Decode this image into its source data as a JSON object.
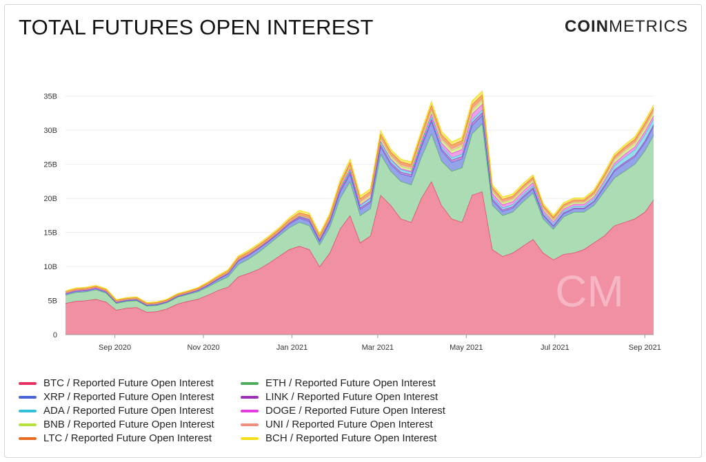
{
  "header": {
    "title": "TOTAL FUTURES OPEN INTEREST",
    "logo_bold": "COIN",
    "logo_thin": "METRICS"
  },
  "chart_data": {
    "type": "area",
    "stacked": true,
    "title": "TOTAL FUTURES OPEN INTEREST",
    "xlabel": "",
    "ylabel": "",
    "ylim": [
      0,
      38000000000
    ],
    "y_ticks": [
      "0",
      "5B",
      "10B",
      "15B",
      "20B",
      "25B",
      "30B",
      "35B"
    ],
    "x_ticks": [
      "Sep 2020",
      "Nov 2020",
      "Jan 2021",
      "Mar 2021",
      "May 2021",
      "Jul 2021",
      "Sep 2021"
    ],
    "grid": true,
    "legend_placement": "bottom",
    "x": [
      "2020-07-29",
      "2020-08-05",
      "2020-08-12",
      "2020-08-19",
      "2020-08-26",
      "2020-09-02",
      "2020-09-09",
      "2020-09-16",
      "2020-09-23",
      "2020-09-30",
      "2020-10-07",
      "2020-10-14",
      "2020-10-21",
      "2020-10-28",
      "2020-11-04",
      "2020-11-11",
      "2020-11-18",
      "2020-11-25",
      "2020-12-02",
      "2020-12-09",
      "2020-12-16",
      "2020-12-23",
      "2020-12-30",
      "2021-01-06",
      "2021-01-13",
      "2021-01-20",
      "2021-01-27",
      "2021-02-03",
      "2021-02-10",
      "2021-02-17",
      "2021-02-24",
      "2021-03-03",
      "2021-03-10",
      "2021-03-17",
      "2021-03-24",
      "2021-03-31",
      "2021-04-07",
      "2021-04-14",
      "2021-04-21",
      "2021-04-28",
      "2021-05-05",
      "2021-05-12",
      "2021-05-19",
      "2021-05-26",
      "2021-06-02",
      "2021-06-09",
      "2021-06-16",
      "2021-06-23",
      "2021-06-30",
      "2021-07-07",
      "2021-07-14",
      "2021-07-21",
      "2021-07-28",
      "2021-08-04",
      "2021-08-11",
      "2021-08-18",
      "2021-08-25",
      "2021-09-01",
      "2021-09-07"
    ],
    "series": [
      {
        "name": "BTC / Reported Future Open Interest",
        "color": "#e8305f",
        "fill": "#f08a9e",
        "values": [
          4.6,
          4.9,
          5.0,
          5.2,
          4.8,
          3.6,
          3.9,
          4.0,
          3.3,
          3.4,
          3.8,
          4.5,
          4.9,
          5.2,
          5.8,
          6.5,
          7.0,
          8.5,
          9.0,
          9.6,
          10.5,
          11.5,
          12.5,
          13.0,
          12.5,
          10.0,
          12.0,
          15.5,
          17.5,
          13.5,
          14.5,
          20.5,
          19.0,
          17.0,
          16.5,
          20.0,
          22.5,
          19.0,
          17.0,
          16.5,
          20.5,
          21.0,
          12.5,
          11.5,
          12.0,
          13.0,
          14.0,
          12.0,
          11.0,
          11.8,
          12.0,
          12.5,
          13.5,
          14.5,
          16.0,
          16.5,
          17.0,
          18.0,
          19.8
        ]
      },
      {
        "name": "ETH / Reported Future Open Interest",
        "color": "#4cae5c",
        "fill": "#a8dab0",
        "values": [
          1.2,
          1.3,
          1.3,
          1.4,
          1.3,
          1.0,
          1.0,
          1.0,
          0.9,
          0.9,
          0.9,
          1.0,
          1.0,
          1.1,
          1.2,
          1.3,
          1.5,
          1.8,
          2.1,
          2.5,
          2.8,
          3.0,
          3.2,
          3.5,
          3.5,
          3.2,
          3.8,
          4.5,
          5.0,
          4.0,
          4.0,
          6.0,
          5.0,
          5.5,
          5.5,
          6.0,
          7.0,
          6.5,
          7.0,
          8.0,
          9.0,
          10.0,
          6.5,
          6.0,
          6.0,
          6.5,
          6.8,
          5.0,
          4.5,
          5.5,
          6.0,
          5.5,
          5.5,
          6.5,
          7.0,
          7.5,
          8.0,
          9.0,
          9.5
        ]
      },
      {
        "name": "XRP / Reported Future Open Interest",
        "color": "#4a62d8",
        "fill": "#8f9ee8",
        "values": [
          0.15,
          0.15,
          0.15,
          0.15,
          0.15,
          0.1,
          0.1,
          0.1,
          0.1,
          0.1,
          0.1,
          0.1,
          0.1,
          0.15,
          0.2,
          0.3,
          0.4,
          0.5,
          0.5,
          0.5,
          0.4,
          0.4,
          0.5,
          0.6,
          0.6,
          0.5,
          0.7,
          0.9,
          1.1,
          0.9,
          0.9,
          1.1,
          1.0,
          1.1,
          1.2,
          1.5,
          1.8,
          1.5,
          1.3,
          1.3,
          1.2,
          1.2,
          0.7,
          0.6,
          0.6,
          0.6,
          0.6,
          0.5,
          0.4,
          0.45,
          0.45,
          0.45,
          0.5,
          0.7,
          1.0,
          1.1,
          1.1,
          1.2,
          1.3
        ]
      },
      {
        "name": "LINK / Reported Future Open Interest",
        "color": "#9a2fb3",
        "fill": "#c78ad6",
        "values": [
          0.1,
          0.1,
          0.1,
          0.1,
          0.1,
          0.08,
          0.08,
          0.08,
          0.07,
          0.07,
          0.07,
          0.07,
          0.07,
          0.08,
          0.09,
          0.1,
          0.1,
          0.12,
          0.12,
          0.12,
          0.12,
          0.13,
          0.15,
          0.18,
          0.2,
          0.18,
          0.2,
          0.25,
          0.3,
          0.25,
          0.25,
          0.3,
          0.28,
          0.28,
          0.3,
          0.3,
          0.35,
          0.3,
          0.35,
          0.35,
          0.4,
          0.4,
          0.25,
          0.22,
          0.2,
          0.2,
          0.2,
          0.18,
          0.15,
          0.15,
          0.15,
          0.15,
          0.15,
          0.18,
          0.2,
          0.22,
          0.22,
          0.25,
          0.25
        ]
      },
      {
        "name": "ADA / Reported Future Open Interest",
        "color": "#33c1d9",
        "fill": "#8fdcea",
        "values": [
          0.03,
          0.03,
          0.03,
          0.03,
          0.03,
          0.03,
          0.03,
          0.03,
          0.03,
          0.03,
          0.03,
          0.03,
          0.03,
          0.03,
          0.04,
          0.05,
          0.05,
          0.06,
          0.06,
          0.06,
          0.06,
          0.06,
          0.07,
          0.08,
          0.1,
          0.1,
          0.12,
          0.2,
          0.3,
          0.3,
          0.35,
          0.4,
          0.4,
          0.35,
          0.35,
          0.35,
          0.4,
          0.35,
          0.35,
          0.35,
          0.4,
          0.45,
          0.3,
          0.3,
          0.3,
          0.3,
          0.3,
          0.25,
          0.25,
          0.25,
          0.25,
          0.25,
          0.3,
          0.4,
          0.6,
          0.7,
          0.8,
          0.9,
          0.8
        ]
      },
      {
        "name": "DOGE / Reported Future Open Interest",
        "color": "#e33be0",
        "fill": "#f09ae8",
        "values": [
          0.01,
          0.01,
          0.01,
          0.01,
          0.01,
          0.01,
          0.01,
          0.01,
          0.01,
          0.01,
          0.01,
          0.01,
          0.01,
          0.01,
          0.01,
          0.01,
          0.01,
          0.01,
          0.01,
          0.01,
          0.01,
          0.01,
          0.02,
          0.05,
          0.08,
          0.08,
          0.1,
          0.15,
          0.2,
          0.15,
          0.15,
          0.15,
          0.15,
          0.15,
          0.15,
          0.2,
          0.4,
          0.5,
          0.6,
          0.7,
          0.9,
          0.8,
          0.5,
          0.45,
          0.45,
          0.45,
          0.45,
          0.35,
          0.3,
          0.3,
          0.3,
          0.3,
          0.3,
          0.35,
          0.4,
          0.45,
          0.45,
          0.5,
          0.5
        ]
      },
      {
        "name": "BNB / Reported Future Open Interest",
        "color": "#b6e33a",
        "fill": "#d8f09a",
        "values": [
          0.05,
          0.05,
          0.05,
          0.05,
          0.05,
          0.05,
          0.05,
          0.05,
          0.05,
          0.05,
          0.05,
          0.05,
          0.05,
          0.05,
          0.05,
          0.05,
          0.06,
          0.06,
          0.06,
          0.06,
          0.06,
          0.06,
          0.07,
          0.08,
          0.1,
          0.1,
          0.12,
          0.2,
          0.3,
          0.3,
          0.3,
          0.35,
          0.35,
          0.35,
          0.35,
          0.4,
          0.45,
          0.45,
          0.45,
          0.5,
          0.5,
          0.5,
          0.3,
          0.3,
          0.3,
          0.3,
          0.3,
          0.25,
          0.25,
          0.25,
          0.25,
          0.25,
          0.3,
          0.35,
          0.4,
          0.45,
          0.45,
          0.5,
          0.5
        ]
      },
      {
        "name": "UNI / Reported Future Open Interest",
        "color": "#f0907a",
        "fill": "#f6c0b2",
        "values": [
          0.02,
          0.02,
          0.02,
          0.02,
          0.03,
          0.04,
          0.05,
          0.05,
          0.05,
          0.05,
          0.05,
          0.05,
          0.05,
          0.05,
          0.05,
          0.05,
          0.06,
          0.06,
          0.06,
          0.06,
          0.06,
          0.06,
          0.07,
          0.08,
          0.1,
          0.1,
          0.12,
          0.15,
          0.2,
          0.2,
          0.2,
          0.25,
          0.25,
          0.25,
          0.25,
          0.25,
          0.3,
          0.3,
          0.3,
          0.3,
          0.35,
          0.35,
          0.25,
          0.22,
          0.2,
          0.2,
          0.2,
          0.18,
          0.15,
          0.15,
          0.15,
          0.15,
          0.15,
          0.2,
          0.25,
          0.28,
          0.3,
          0.3,
          0.3
        ]
      },
      {
        "name": "LTC / Reported Future Open Interest",
        "color": "#ea6b1f",
        "fill": "#f4a46c",
        "values": [
          0.15,
          0.15,
          0.15,
          0.15,
          0.15,
          0.12,
          0.12,
          0.12,
          0.1,
          0.1,
          0.1,
          0.1,
          0.12,
          0.12,
          0.15,
          0.18,
          0.2,
          0.25,
          0.25,
          0.25,
          0.25,
          0.25,
          0.3,
          0.35,
          0.35,
          0.3,
          0.35,
          0.4,
          0.45,
          0.4,
          0.4,
          0.45,
          0.4,
          0.4,
          0.4,
          0.45,
          0.55,
          0.5,
          0.5,
          0.5,
          0.55,
          0.55,
          0.35,
          0.3,
          0.3,
          0.3,
          0.3,
          0.25,
          0.25,
          0.25,
          0.25,
          0.25,
          0.3,
          0.3,
          0.35,
          0.35,
          0.35,
          0.4,
          0.4
        ]
      },
      {
        "name": "BCH / Reported Future Open Interest",
        "color": "#f5df1d",
        "fill": "#f8ea7a",
        "values": [
          0.12,
          0.12,
          0.12,
          0.12,
          0.12,
          0.1,
          0.1,
          0.1,
          0.1,
          0.1,
          0.1,
          0.1,
          0.1,
          0.1,
          0.12,
          0.15,
          0.15,
          0.18,
          0.2,
          0.2,
          0.2,
          0.2,
          0.25,
          0.3,
          0.3,
          0.25,
          0.3,
          0.35,
          0.4,
          0.35,
          0.35,
          0.4,
          0.35,
          0.35,
          0.35,
          0.4,
          0.45,
          0.4,
          0.45,
          0.45,
          0.5,
          0.5,
          0.3,
          0.3,
          0.3,
          0.3,
          0.3,
          0.25,
          0.25,
          0.25,
          0.25,
          0.25,
          0.25,
          0.3,
          0.3,
          0.3,
          0.35,
          0.35,
          0.35
        ]
      }
    ],
    "units": "B"
  },
  "legend_order": [
    0,
    1,
    2,
    3,
    4,
    5,
    6,
    7,
    8,
    9
  ],
  "legend_layout": [
    {
      "series": 0
    },
    {
      "series": 2
    },
    {
      "series": 4
    },
    {
      "series": 6
    },
    {
      "series": 8
    },
    {
      "series": 1
    },
    {
      "series": 3
    },
    {
      "series": 5
    },
    {
      "series": 7
    },
    {
      "series": 9
    }
  ]
}
